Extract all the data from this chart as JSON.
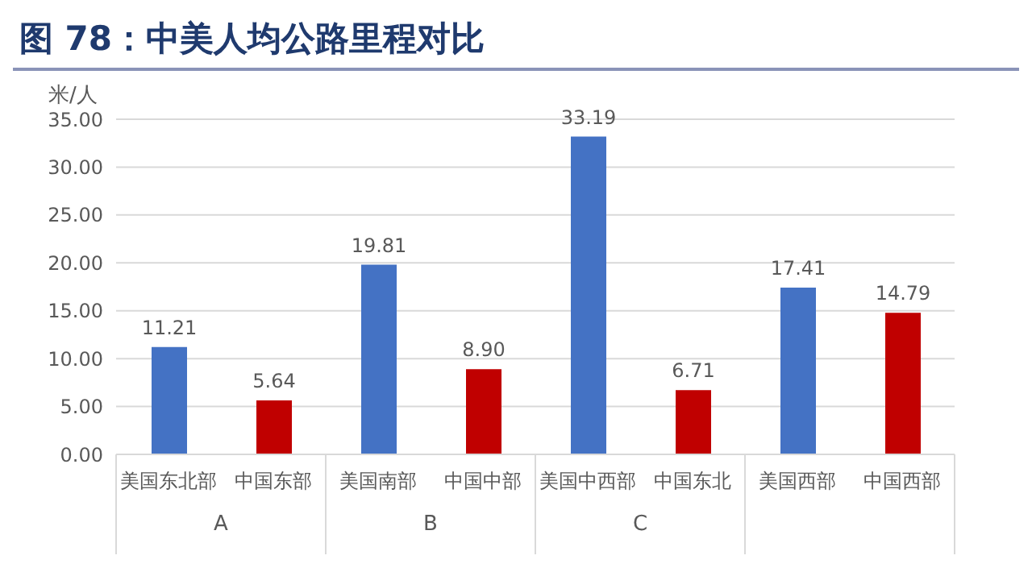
{
  "chart_data": {
    "type": "bar",
    "title": "图 78：中美人均公路里程对比",
    "ylabel": "米/人",
    "categories": [
      "美国东北部",
      "中国东部",
      "美国南部",
      "中国中部",
      "美国中西部",
      "中国东北",
      "美国西部",
      "中国西部"
    ],
    "values": [
      11.21,
      5.64,
      19.81,
      8.9,
      33.19,
      6.71,
      17.41,
      14.79
    ],
    "colors": [
      "#4472c4",
      "#c00000",
      "#4472c4",
      "#c00000",
      "#4472c4",
      "#c00000",
      "#4472c4",
      "#c00000"
    ],
    "value_labels": [
      "11.21",
      "5.64",
      "19.81",
      "8.90",
      "33.19",
      "6.71",
      "17.41",
      "14.79"
    ],
    "ylim": [
      0,
      35
    ],
    "yticks": [
      {
        "value": 0,
        "label": "0.00"
      },
      {
        "value": 5,
        "label": "5.00"
      },
      {
        "value": 10,
        "label": "10.00"
      },
      {
        "value": 15,
        "label": "15.00"
      },
      {
        "value": 20,
        "label": "20.00"
      },
      {
        "value": 25,
        "label": "25.00"
      },
      {
        "value": 30,
        "label": "30.00"
      },
      {
        "value": 35,
        "label": "35.00"
      }
    ],
    "grid": "y",
    "legend": false,
    "annotations": [
      "A",
      "B",
      "C"
    ]
  }
}
